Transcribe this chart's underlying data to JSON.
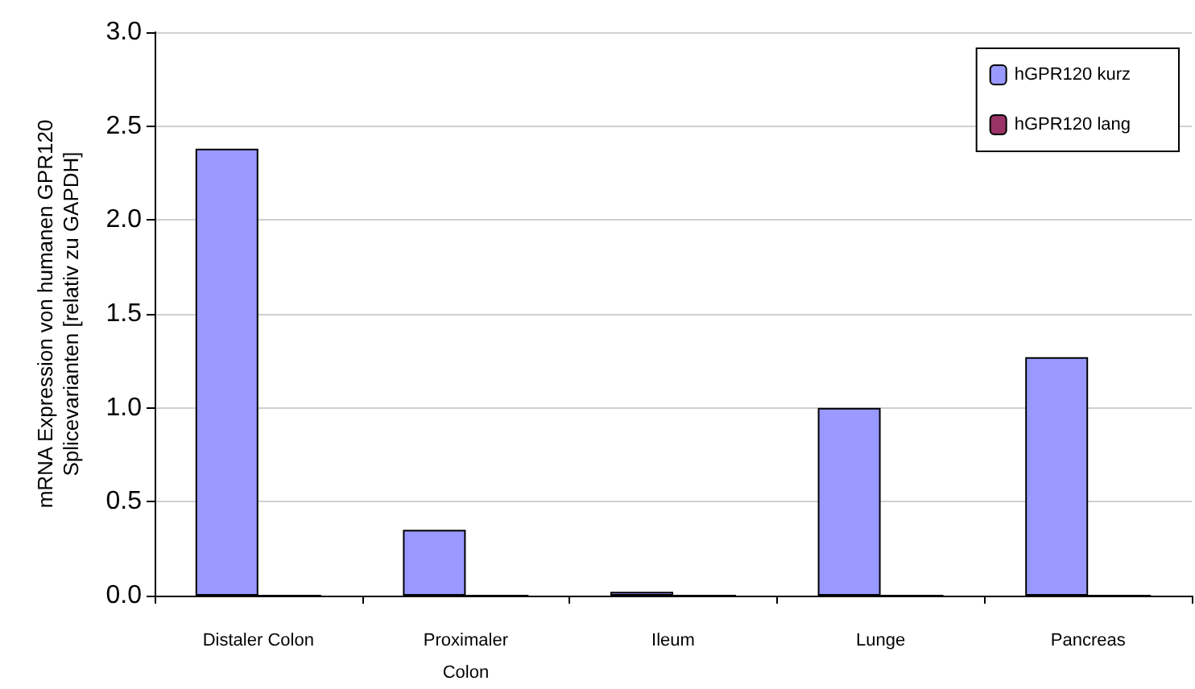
{
  "chart_data": {
    "type": "bar",
    "ylabel": "mRNA Expression von humanen GPR120\nSplicevarianten [relativ zu GAPDH]",
    "categories": [
      "Distaler Colon",
      "Proximaler\nColon",
      "Ileum",
      "Lunge",
      "Pancreas"
    ],
    "series": [
      {
        "name": "hGPR120 kurz",
        "color": "#9999ff",
        "values": [
          2.38,
          0.35,
          0.02,
          1.0,
          1.27
        ]
      },
      {
        "name": "hGPR120 lang",
        "color": "#993366",
        "values": [
          0,
          0,
          0,
          0,
          0
        ]
      }
    ],
    "ylim": [
      0,
      3
    ],
    "yticks": [
      {
        "value": 0,
        "label": "0.0"
      },
      0.5,
      {
        "value": 1,
        "label": "1.0"
      },
      1.5,
      {
        "value": 2,
        "label": "2.0"
      },
      2.5,
      {
        "value": 3,
        "label": "3.0"
      }
    ],
    "grid": "y",
    "legend": "top right"
  }
}
